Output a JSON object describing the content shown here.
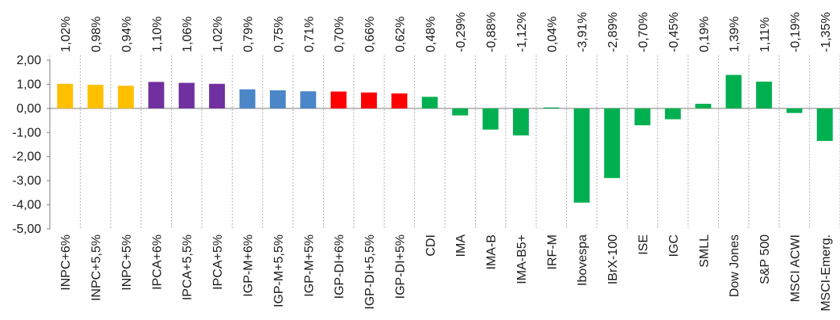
{
  "chart_data": {
    "type": "bar",
    "ylim": [
      -5,
      2
    ],
    "yticks": [
      "2,00",
      "1,00",
      "0,00",
      "-1,00",
      "-2,00",
      "-3,00",
      "-4,00",
      "-5,00"
    ],
    "grid": "vertical dotted",
    "legend": "none",
    "colors": {
      "inpc": "#FFC000",
      "ipca": "#7030A0",
      "igpm": "#4A86C8",
      "igpdi": "#FF0000",
      "market": "#00B050"
    },
    "categories": [
      "INPC+6%",
      "INPC+5,5%",
      "INPC+5%",
      "IPCA+6%",
      "IPCA+5,5%",
      "IPCA+5%",
      "IGP-M+6%",
      "IGP-M+5,5%",
      "IGP-M+5%",
      "IGP-DI+6%",
      "IGP-DI+5,5%",
      "IGP-DI+5%",
      "CDI",
      "IMA",
      "IMA-B",
      "IMA-B5+",
      "IRF-M",
      "Ibovespa",
      "IBrX-100",
      "ISE",
      "IGC",
      "SMLL",
      "Dow Jones",
      "S&P 500",
      "MSCI ACWI",
      "MSCI-Emerg."
    ],
    "values": [
      1.02,
      0.98,
      0.94,
      1.1,
      1.06,
      1.02,
      0.79,
      0.75,
      0.71,
      0.7,
      0.66,
      0.62,
      0.48,
      -0.29,
      -0.88,
      -1.12,
      0.04,
      -3.91,
      -2.89,
      -0.7,
      -0.45,
      0.19,
      1.39,
      1.11,
      -0.19,
      -1.35
    ],
    "value_labels": [
      "1,02%",
      "0,98%",
      "0,94%",
      "1,10%",
      "1,06%",
      "1,02%",
      "0,79%",
      "0,75%",
      "0,71%",
      "0,70%",
      "0,66%",
      "0,62%",
      "0,48%",
      "-0,29%",
      "-0,88%",
      "-1,12%",
      "0,04%",
      "-3,91%",
      "-2,89%",
      "-0,70%",
      "-0,45%",
      "0,19%",
      "1,39%",
      "1,11%",
      "-0,19%",
      "-1,35%"
    ],
    "bar_color_keys": [
      "inpc",
      "inpc",
      "inpc",
      "ipca",
      "ipca",
      "ipca",
      "igpm",
      "igpm",
      "igpm",
      "igpdi",
      "igpdi",
      "igpdi",
      "market",
      "market",
      "market",
      "market",
      "market",
      "market",
      "market",
      "market",
      "market",
      "market",
      "market",
      "market",
      "market",
      "market"
    ]
  }
}
